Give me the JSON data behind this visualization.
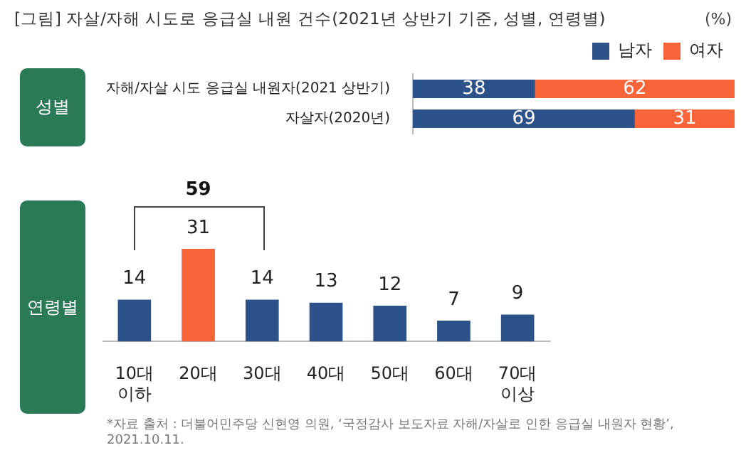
{
  "chart_data": [
    {
      "type": "bar",
      "title": "[그림] 자살/자해 시도로 응급실 내원 건수(2021년 상반기 기준, 성별, 연령별)",
      "orientation": "horizontal",
      "stacked": true,
      "legend": "top right",
      "data_labels": true,
      "categories": [
        "자해/자살 시도 응급실 내원자(2021 상반기)",
        "자살자(2020년)"
      ],
      "series": [
        {
          "name": "남자",
          "color": "#2d5289",
          "values": [
            38,
            69
          ]
        },
        {
          "name": "여자",
          "color": "#f7643a",
          "values": [
            62,
            31
          ]
        }
      ],
      "annotations": [
        "(%)",
        "성별"
      ]
    },
    {
      "type": "bar",
      "data_labels": true,
      "categories": [
        "10대 이하",
        "20대",
        "30대",
        "40대",
        "50대",
        "60대",
        "70대 이상"
      ],
      "values": [
        14,
        31,
        14,
        13,
        12,
        7,
        9
      ],
      "colors": [
        "#2d5289",
        "#f7643a",
        "#2d5289",
        "#2d5289",
        "#2d5289",
        "#2d5289",
        "#2d5289"
      ],
      "annotations": [
        "59",
        "연령별",
        "*자료 출처 : 더불어민주당 신현영 의원, ‘국정감사 보도자료 자해/자살로 인한 응급실 내원자 현황’, 2021.10.11."
      ]
    }
  ]
}
